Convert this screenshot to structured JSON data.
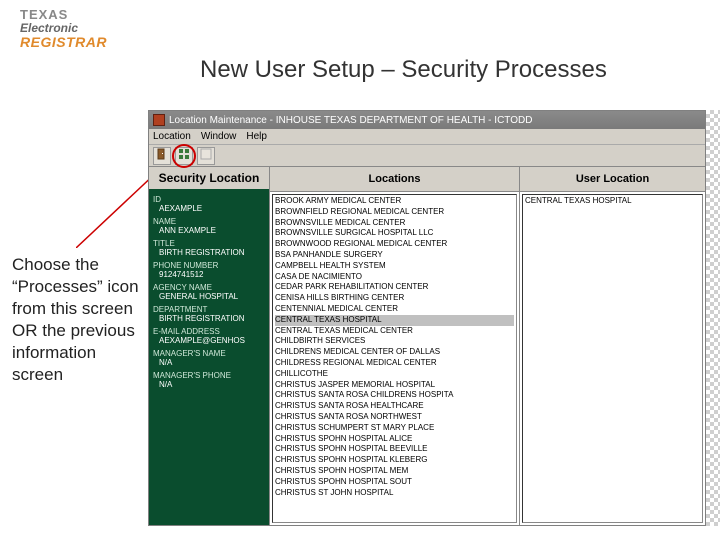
{
  "logo": {
    "line1": "TEXAS",
    "line2": "Electronic",
    "line3": "REGISTRAR"
  },
  "page_title": "New User Setup – Security Processes",
  "instruction": "Choose the “Processes” icon from this screen OR the previous information screen",
  "window": {
    "title": "Location Maintenance - INHOUSE TEXAS DEPARTMENT OF HEALTH - ICTODD",
    "menu": {
      "location": "Location",
      "window": "Window",
      "help": "Help"
    },
    "toolbar": {
      "btn1_icon": "door-icon",
      "btn2_icon": "processes-icon",
      "btn3_icon": "blank-icon"
    },
    "sidebar_title": "Security Location",
    "fields": {
      "id_label": "ID",
      "id_val": "AEXAMPLE",
      "name_label": "NAME",
      "name_val": "ANN EXAMPLE",
      "title_label": "TITLE",
      "title_val": "BIRTH REGISTRATION",
      "phone_label": "PHONE NUMBER",
      "phone_val": "9124741512",
      "agency_label": "AGENCY NAME",
      "agency_val": "GENERAL HOSPITAL",
      "dept_label": "DEPARTMENT",
      "dept_val": "BIRTH REGISTRATION",
      "email_label": "E-MAIL ADDRESS",
      "email_val": "AEXAMPLE@GENHOS",
      "mgrname_label": "MANAGER'S NAME",
      "mgrname_val": "N/A",
      "mgrphone_label": "MANAGER'S PHONE",
      "mgrphone_val": "N/A"
    },
    "locations_header": "Locations",
    "userloc_header": "User Location",
    "locations": [
      "BROOK ARMY MEDICAL CENTER",
      "BROWNFIELD REGIONAL MEDICAL CENTER",
      "BROWNSVILLE MEDICAL CENTER",
      "BROWNSVILLE SURGICAL HOSPITAL LLC",
      "BROWNWOOD REGIONAL MEDICAL CENTER",
      "BSA PANHANDLE SURGERY",
      "CAMPBELL HEALTH SYSTEM",
      "CASA DE NACIMIENTO",
      "CEDAR PARK REHABILITATION CENTER",
      "CENISA HILLS BIRTHING CENTER",
      "CENTENNIAL MEDICAL CENTER",
      "CENTRAL TEXAS HOSPITAL",
      "CENTRAL TEXAS MEDICAL CENTER",
      "CHILDBIRTH SERVICES",
      "CHILDRENS MEDICAL CENTER OF DALLAS",
      "CHILDRESS REGIONAL MEDICAL CENTER",
      "CHILLICOTHE",
      "CHRISTUS JASPER MEMORIAL HOSPITAL",
      "CHRISTUS SANTA ROSA CHILDRENS HOSPITA",
      "CHRISTUS SANTA ROSA HEALTHCARE",
      "CHRISTUS SANTA ROSA NORTHWEST",
      "CHRISTUS SCHUMPERT ST MARY PLACE",
      "CHRISTUS SPOHN HOSPITAL ALICE",
      "CHRISTUS SPOHN HOSPITAL BEEVILLE",
      "CHRISTUS SPOHN HOSPITAL KLEBERG",
      "CHRISTUS SPOHN HOSPITAL MEM",
      "CHRISTUS SPOHN HOSPITAL SOUT",
      "CHRISTUS ST JOHN HOSPITAL"
    ],
    "locations_selected_index": 11,
    "user_locations": [
      "CENTRAL TEXAS HOSPITAL"
    ]
  },
  "colors": {
    "sidebar_bg": "#0a4d2e",
    "chrome": "#d4d0c8",
    "circle": "#c00000",
    "logo_orange": "#e08a2c"
  }
}
